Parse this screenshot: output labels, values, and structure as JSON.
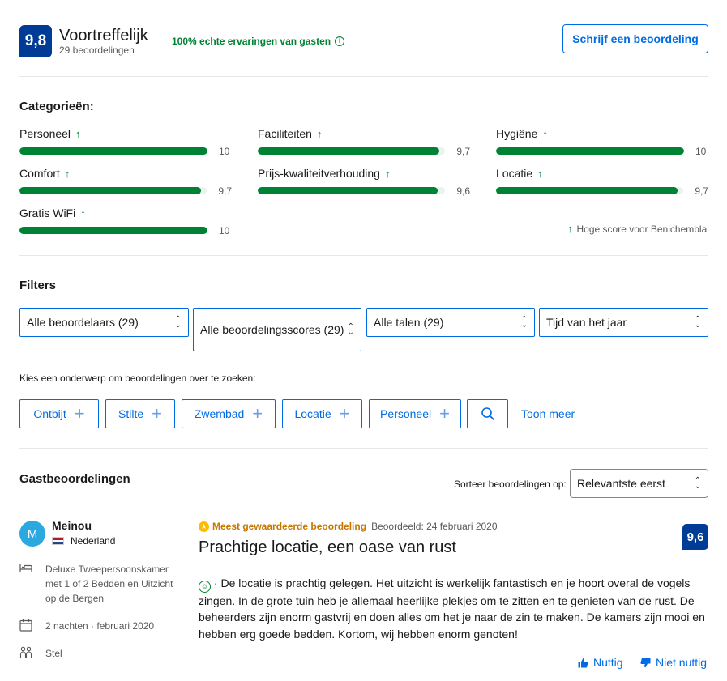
{
  "summary": {
    "score": "9,8",
    "rating_word": "Voortreffelijk",
    "review_count": "29 beoordelingen",
    "verified_text": "100% echte ervaringen van gasten",
    "write_review_label": "Schrijf een beoordeling"
  },
  "categories": {
    "title": "Categorieën:",
    "items": [
      {
        "label": "Personeel",
        "value": "10",
        "fraction": 1.0
      },
      {
        "label": "Faciliteiten",
        "value": "9,7",
        "fraction": 0.97
      },
      {
        "label": "Hygiëne",
        "value": "10",
        "fraction": 1.0
      },
      {
        "label": "Comfort",
        "value": "9,7",
        "fraction": 0.97
      },
      {
        "label": "Prijs-kwaliteitverhouding",
        "value": "9,6",
        "fraction": 0.96
      },
      {
        "label": "Locatie",
        "value": "9,7",
        "fraction": 0.97
      },
      {
        "label": "Gratis WiFi",
        "value": "10",
        "fraction": 1.0
      }
    ],
    "high_score_note": "Hoge score voor Benichembla"
  },
  "filters": {
    "title": "Filters",
    "selects": [
      "Alle beoordelaars (29)",
      "Alle beoordelingsscores (29)",
      "Alle talen (29)",
      "Tijd van het jaar"
    ],
    "topic_prompt": "Kies een onderwerp om beoordelingen over te zoeken:",
    "topics": [
      "Ontbijt",
      "Stilte",
      "Zwembad",
      "Locatie",
      "Personeel"
    ],
    "show_more": "Toon meer"
  },
  "reviews": {
    "title": "Gastbeoordelingen",
    "sort_label": "Sorteer beoordelingen op:",
    "sort_value": "Relevantste eerst",
    "items": [
      {
        "avatar_letter": "M",
        "name": "Meinou",
        "country": "Nederland",
        "room": "Deluxe Tweepersoonskamer met 1 of 2 Bedden en Uitzicht op de Bergen",
        "nights": "2 nachten",
        "stay_month": "februari 2020",
        "traveler_type": "Stel",
        "badge": "Meest gewaardeerde beoordeling",
        "date": "Beoordeeld: 24 februari 2020",
        "title": "Prachtige locatie, een oase van rust",
        "score": "9,6",
        "body": "De locatie is prachtig gelegen. Het uitzicht is werkelijk fantastisch en je hoort overal de vogels zingen. In de grote tuin heb je allemaal heerlijke plekjes om te zitten en te genieten van de rust. De beheerders zijn enorm gastvrij en doen alles om het je naar de zin te maken. De kamers zijn mooi en hebben erg goede bedden. Kortom, wij hebben enorm genoten!",
        "helpful_label": "Nuttig",
        "not_helpful_label": "Niet nuttig"
      }
    ]
  },
  "colors": {
    "brand_dark": "#003b95",
    "link": "#006ce4",
    "positive": "#008234",
    "highlight": "#febb02"
  }
}
